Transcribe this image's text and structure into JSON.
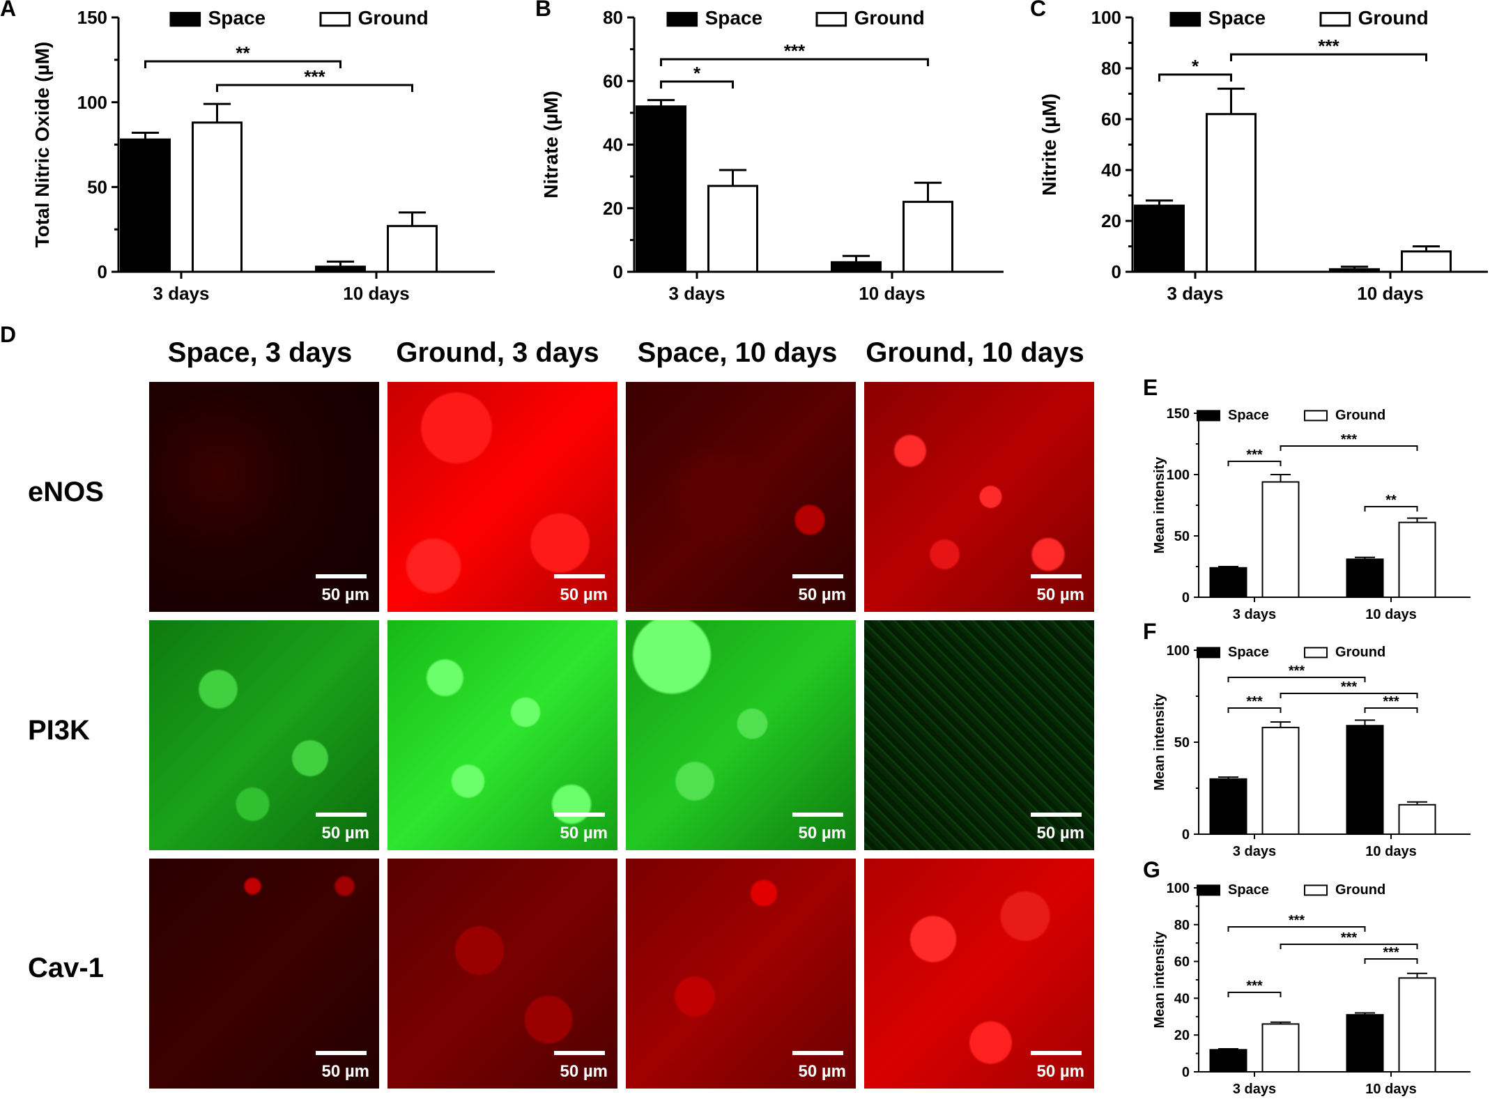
{
  "panel_letters": {
    "A": "A",
    "B": "B",
    "C": "C",
    "D": "D",
    "E": "E",
    "F": "F",
    "G": "G"
  },
  "colors": {
    "space": "#000000",
    "ground": "#ffffff",
    "red_stain": "#ff0000",
    "green_stain": "#00ff00"
  },
  "microscopy": {
    "columns": [
      "Space, 3 days",
      "Ground, 3 days",
      "Space, 10 days",
      "Ground, 10 days"
    ],
    "rows": [
      "eNOS",
      "PI3K",
      "Cav-1"
    ],
    "scale_bar": "50 µm"
  },
  "chart_data": [
    {
      "id": "A",
      "type": "bar",
      "categories": [
        "3 days",
        "10 days"
      ],
      "series": [
        {
          "name": "Space",
          "values": [
            78,
            3
          ],
          "errors": [
            4,
            3
          ]
        },
        {
          "name": "Ground",
          "values": [
            88,
            27
          ],
          "errors": [
            11,
            8
          ]
        }
      ],
      "ylabel": "Total Nitric Oxide (µM)",
      "ylim": [
        0,
        150
      ],
      "yticks": [
        0,
        50,
        100,
        150
      ],
      "annotations": [
        {
          "label": "**",
          "from": [
            0,
            0
          ],
          "to": [
            1,
            0
          ]
        },
        {
          "label": "***",
          "from": [
            0,
            1
          ],
          "to": [
            1,
            1
          ]
        }
      ],
      "legend": "top"
    },
    {
      "id": "B",
      "type": "bar",
      "categories": [
        "3 days",
        "10 days"
      ],
      "series": [
        {
          "name": "Space",
          "values": [
            52,
            3
          ],
          "errors": [
            2,
            2
          ]
        },
        {
          "name": "Ground",
          "values": [
            27,
            22
          ],
          "errors": [
            5,
            6
          ]
        }
      ],
      "ylabel": "Nitrate (µM)",
      "ylim": [
        0,
        80
      ],
      "yticks": [
        0,
        20,
        40,
        60,
        80
      ],
      "annotations": [
        {
          "label": "*",
          "from": [
            0,
            0
          ],
          "to": [
            0,
            1
          ]
        },
        {
          "label": "***",
          "from": [
            0,
            0
          ],
          "to": [
            1,
            1
          ]
        }
      ],
      "legend": "top"
    },
    {
      "id": "C",
      "type": "bar",
      "categories": [
        "3 days",
        "10 days"
      ],
      "series": [
        {
          "name": "Space",
          "values": [
            26,
            1
          ],
          "errors": [
            2,
            1
          ]
        },
        {
          "name": "Ground",
          "values": [
            62,
            8
          ],
          "errors": [
            10,
            2
          ]
        }
      ],
      "ylabel": "Nitrite (µM)",
      "ylim": [
        0,
        100
      ],
      "yticks": [
        0,
        20,
        40,
        60,
        80,
        100
      ],
      "annotations": [
        {
          "label": "*",
          "from": [
            0,
            0
          ],
          "to": [
            0,
            1
          ]
        },
        {
          "label": "***",
          "from": [
            0,
            1
          ],
          "to": [
            1,
            1
          ]
        }
      ],
      "legend": "top"
    },
    {
      "id": "E",
      "type": "bar",
      "categories": [
        "3 days",
        "10 days"
      ],
      "series": [
        {
          "name": "Space",
          "values": [
            24,
            31
          ],
          "errors": [
            1,
            1.5
          ]
        },
        {
          "name": "Ground",
          "values": [
            94,
            61
          ],
          "errors": [
            6,
            3.5
          ]
        }
      ],
      "ylabel": "Mean intensity",
      "ylim": [
        0,
        150
      ],
      "yticks": [
        0,
        50,
        100,
        150
      ],
      "annotations": [
        {
          "label": "***",
          "from": [
            0,
            0
          ],
          "to": [
            0,
            1
          ]
        },
        {
          "label": "***",
          "from": [
            0,
            1
          ],
          "to": [
            1,
            1
          ]
        },
        {
          "label": "**",
          "from": [
            1,
            0
          ],
          "to": [
            1,
            1
          ]
        }
      ],
      "legend": "top"
    },
    {
      "id": "F",
      "type": "bar",
      "categories": [
        "3 days",
        "10 days"
      ],
      "series": [
        {
          "name": "Space",
          "values": [
            30,
            59
          ],
          "errors": [
            1,
            3
          ]
        },
        {
          "name": "Ground",
          "values": [
            58,
            16
          ],
          "errors": [
            3,
            1.5
          ]
        }
      ],
      "ylabel": "Mean intensity",
      "ylim": [
        0,
        100
      ],
      "yticks": [
        0,
        50,
        100
      ],
      "annotations": [
        {
          "label": "***",
          "from": [
            0,
            0
          ],
          "to": [
            1,
            0
          ]
        },
        {
          "label": "***",
          "from": [
            0,
            1
          ],
          "to": [
            1,
            1
          ]
        },
        {
          "label": "***",
          "from": [
            0,
            0
          ],
          "to": [
            0,
            1
          ]
        },
        {
          "label": "***",
          "from": [
            1,
            0
          ],
          "to": [
            1,
            1
          ]
        }
      ],
      "legend": "top"
    },
    {
      "id": "G",
      "type": "bar",
      "categories": [
        "3 days",
        "10 days"
      ],
      "series": [
        {
          "name": "Space",
          "values": [
            12,
            31
          ],
          "errors": [
            0.5,
            1
          ]
        },
        {
          "name": "Ground",
          "values": [
            26,
            51
          ],
          "errors": [
            1,
            2.5
          ]
        }
      ],
      "ylabel": "Mean intensity",
      "ylim": [
        0,
        100
      ],
      "yticks": [
        0,
        20,
        40,
        60,
        80,
        100
      ],
      "annotations": [
        {
          "label": "***",
          "from": [
            0,
            0
          ],
          "to": [
            1,
            0
          ]
        },
        {
          "label": "***",
          "from": [
            0,
            1
          ],
          "to": [
            1,
            1
          ]
        },
        {
          "label": "***",
          "from": [
            1,
            0
          ],
          "to": [
            1,
            1
          ]
        },
        {
          "label": "***",
          "from": [
            0,
            0
          ],
          "to": [
            0,
            1
          ]
        }
      ],
      "legend": "top"
    }
  ]
}
